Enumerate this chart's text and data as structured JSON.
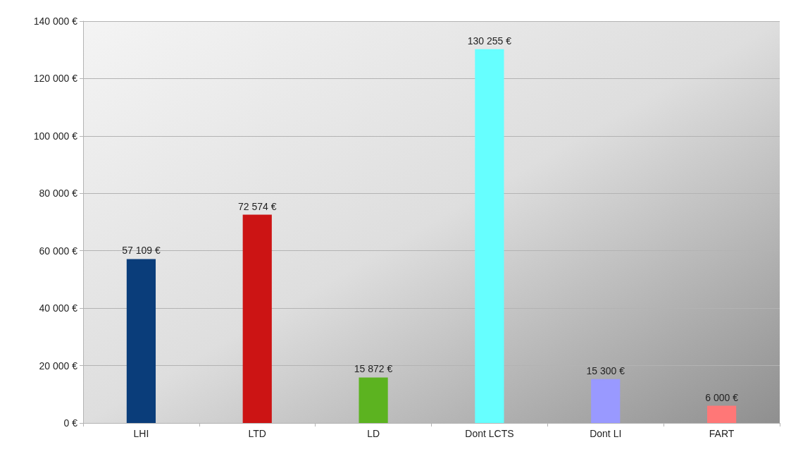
{
  "chart_data": {
    "type": "bar",
    "categories": [
      "LHI",
      "LTD",
      "LD",
      "Dont LCTS",
      "Dont LI",
      "FART"
    ],
    "values": [
      57109,
      72574,
      15872,
      130255,
      15300,
      6000
    ],
    "colors": [
      "#0a3d7a",
      "#cc1414",
      "#5cb320",
      "#66ffff",
      "#9999ff",
      "#ff7777"
    ],
    "value_labels": [
      "57 109 €",
      "72 574 €",
      "15 872 €",
      "130 255 €",
      "15 300 €",
      "6 000 €"
    ],
    "ylim": [
      0,
      140000
    ],
    "yticks": [
      {
        "value": 0,
        "label": "0 €"
      },
      {
        "value": 20000,
        "label": "20 000 €"
      },
      {
        "value": 40000,
        "label": "40 000 €"
      },
      {
        "value": 60000,
        "label": "60 000 €"
      },
      {
        "value": 80000,
        "label": "80 000 €"
      },
      {
        "value": 100000,
        "label": "100 000 €"
      },
      {
        "value": 120000,
        "label": "120 000 €"
      },
      {
        "value": 140000,
        "label": "140 000 €"
      }
    ],
    "grid": "y"
  }
}
